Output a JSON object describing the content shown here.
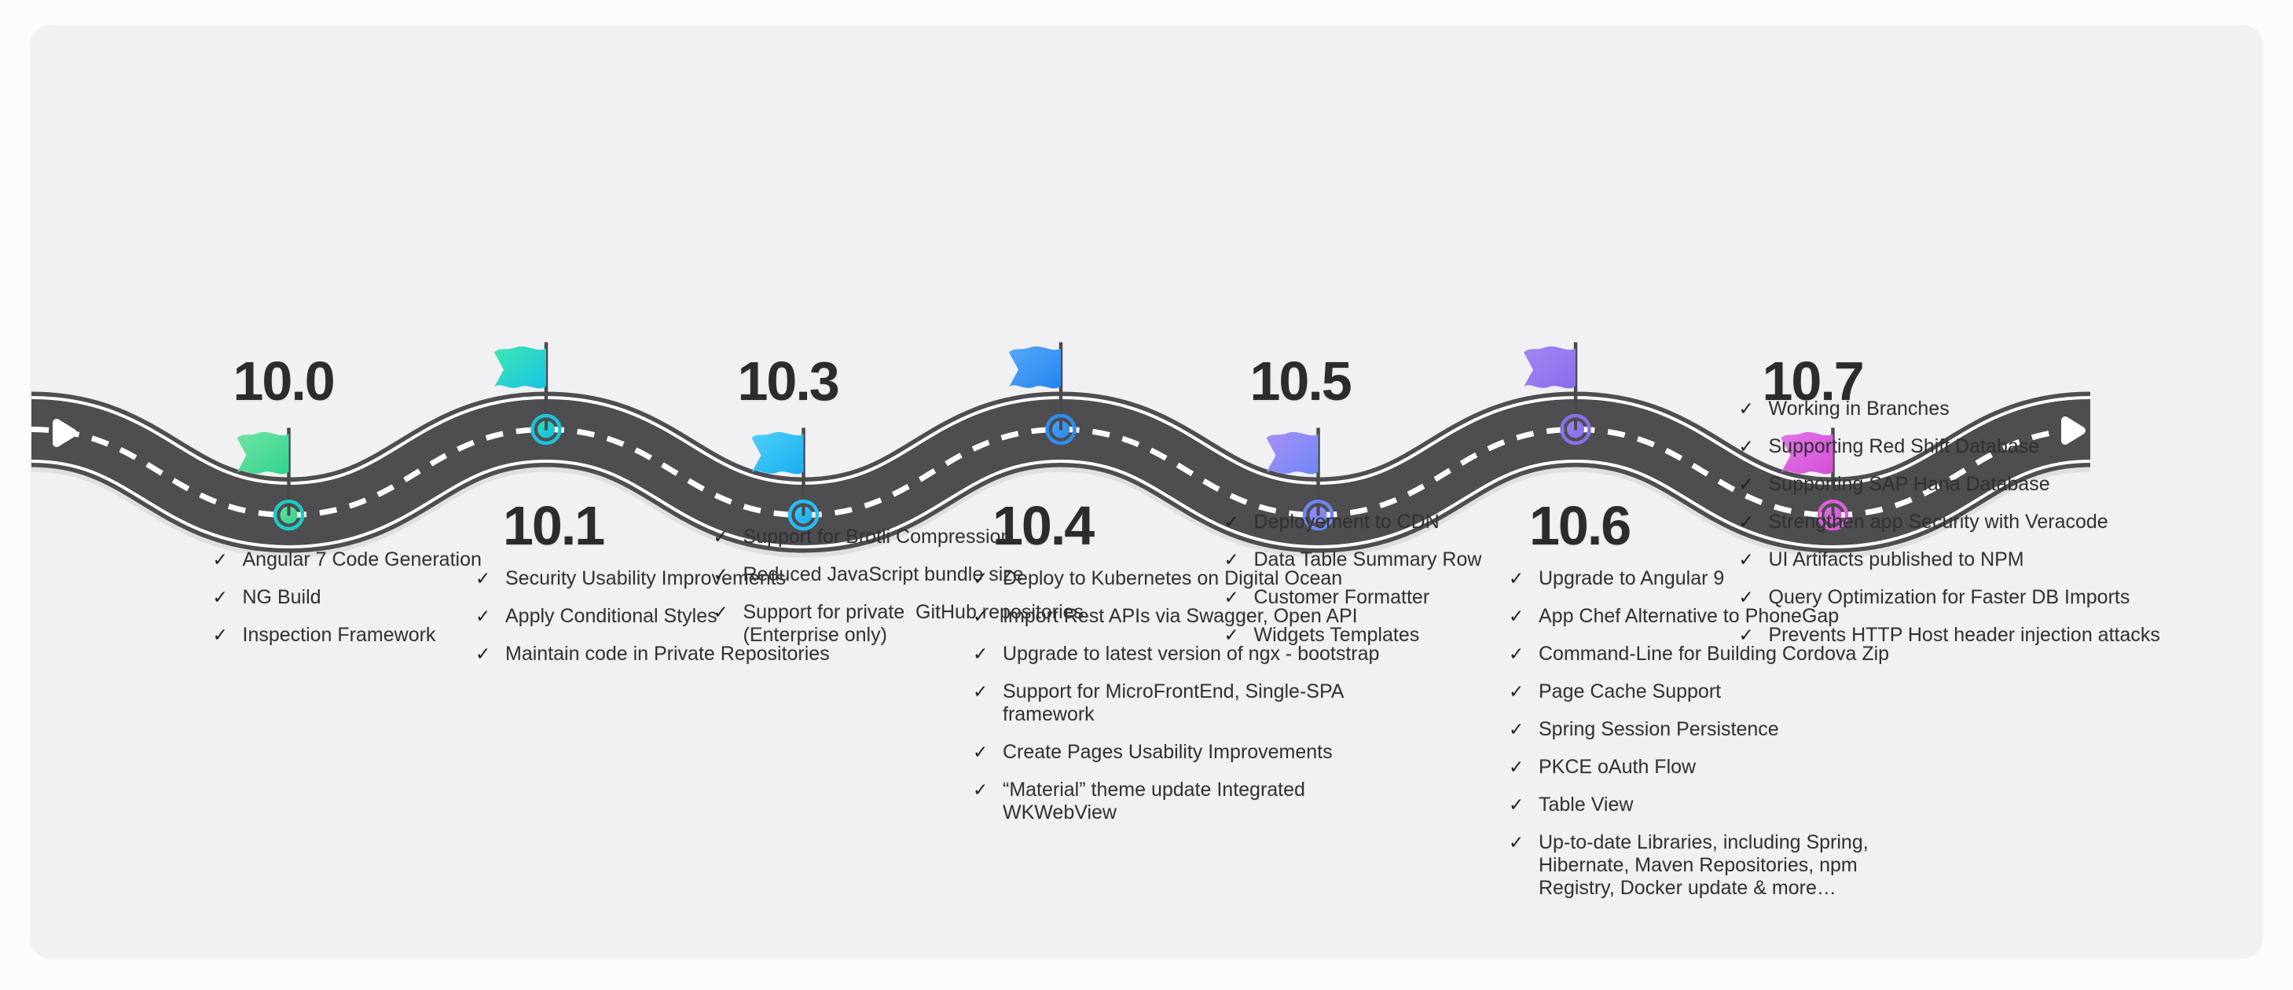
{
  "page": {
    "background": "#fcfcfd",
    "panel_background": "#f1f1f3",
    "road_color": "#4e4e51",
    "road_line_color": "#ffffff",
    "heading_color": "#2c2c2e",
    "text_color": "#323234"
  },
  "icons": {
    "check": "✓",
    "road_arrow": "right-pointing triangle"
  },
  "milestones": [
    {
      "version": "10.0",
      "side": "top",
      "colors": {
        "flag_start": "#72e3a4",
        "flag_end": "#2ed48d",
        "ring": "#1ecdc2",
        "disc_start": "#5fe09b",
        "disc_end": "#30d58e"
      },
      "features": [
        "Angular 7 Code Generation",
        "NG Build",
        "Inspection Framework"
      ]
    },
    {
      "version": "10.1",
      "side": "bottom",
      "colors": {
        "flag_start": "#3fe5ad",
        "flag_end": "#16c5e6",
        "ring": "#1bc4da",
        "disc_start": "#2fd9c0",
        "disc_end": "#14bfe0"
      },
      "features": [
        "Security Usability Improvements",
        "Apply Conditional Styles",
        "Maintain code in Private Repositories"
      ]
    },
    {
      "version": "10.3",
      "side": "top",
      "colors": {
        "flag_start": "#4ed0f8",
        "flag_end": "#18aef0",
        "ring": "#27bdf4",
        "disc_start": "#3ec7f6",
        "disc_end": "#18aef0"
      },
      "features": [
        "Support for Brotli Compression",
        "Reduced JavaScript bundle size",
        "Support for private  GitHub repositories\n(Enterprise only)"
      ]
    },
    {
      "version": "10.4",
      "side": "bottom",
      "colors": {
        "flag_start": "#54aaf7",
        "flag_end": "#2684f0",
        "ring": "#2f8df2",
        "disc_start": "#4aa2f5",
        "disc_end": "#2b87f0"
      },
      "features": [
        "Deploy to Kubernetes on Digital Ocean",
        "Import Rest APIs via Swagger, Open API",
        "Upgrade to latest version of ngx - bootstrap",
        "Support for MicroFrontEnd, Single-SPA\nframework",
        "Create Pages Usability Improvements",
        "“Material” theme update Integrated\nWKWebView"
      ]
    },
    {
      "version": "10.5",
      "side": "top",
      "colors": {
        "flag_start": "#a78ff7",
        "flag_end": "#6e87f7",
        "ring": "#6d86f4",
        "disc_start": "#9a8bf6",
        "disc_end": "#7287f5"
      },
      "features": [
        "Deployement to CDN",
        "Data Table Summary Row",
        "Customer Formatter",
        "Widgets Templates"
      ]
    },
    {
      "version": "10.6",
      "side": "bottom",
      "colors": {
        "flag_start": "#a287f4",
        "flag_end": "#8a6cea",
        "ring": "#8a6fe9",
        "disc_start": "#9d82f2",
        "disc_end": "#8a6cea"
      },
      "features": [
        "Upgrade to Angular 9",
        "App Chef Alternative to PhoneGap",
        "Command-Line for Building Cordova Zip",
        "Page Cache Support",
        "Spring Session Persistence",
        "PKCE oAuth Flow",
        "Table View",
        "Up-to-date Libraries, including Spring,\nHibernate, Maven Repositories, npm\nRegistry, Docker update & more…"
      ]
    },
    {
      "version": "10.7",
      "side": "top",
      "colors": {
        "flag_start": "#e276e8",
        "flag_end": "#d44fd6",
        "ring": "#dd5fdb",
        "disc_start": "#e070e6",
        "disc_end": "#cf52d2"
      },
      "features": [
        "Working in Branches",
        "Supporting Red Shift Database",
        "Supporting SAP Hana Database",
        "Strengthen app Security with Veracode",
        "UI Artifacts published to NPM",
        "Query Optimization for Faster DB Imports",
        "Prevents HTTP Host header injection attacks"
      ]
    }
  ]
}
